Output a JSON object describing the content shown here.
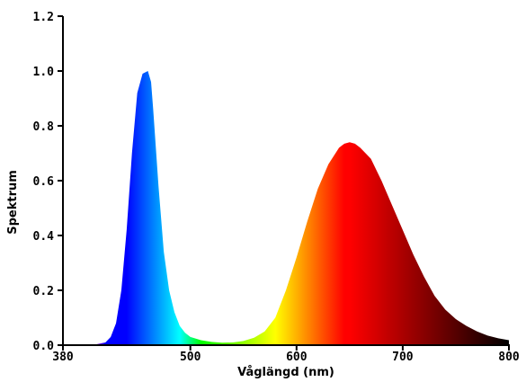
{
  "chart_data": {
    "type": "area",
    "title": "",
    "xlabel": "Våglängd (nm)",
    "ylabel": "Spektrum",
    "xlim": [
      380,
      800
    ],
    "ylim": [
      0,
      1.2
    ],
    "x_ticks": [
      380,
      500,
      600,
      700,
      800
    ],
    "y_ticks": [
      0.0,
      0.2,
      0.4,
      0.6,
      0.8,
      1.0,
      1.2
    ],
    "x_tick_labels": [
      "380",
      "500",
      "600",
      "700",
      "800"
    ],
    "y_tick_labels": [
      "0.0",
      "0.2",
      "0.4",
      "0.6",
      "0.8",
      "1.0",
      "1.2"
    ],
    "grid": false,
    "legend": "none",
    "fill": "wavelength-color gradient",
    "series": [
      {
        "x": [
          380,
          400,
          410,
          420,
          425,
          430,
          435,
          440,
          445,
          450,
          455,
          460,
          463,
          465,
          470,
          475,
          480,
          485,
          490,
          495,
          500,
          510,
          520,
          530,
          540,
          550,
          560,
          570,
          580,
          590,
          600,
          610,
          620,
          630,
          640,
          645,
          650,
          655,
          660,
          670,
          680,
          690,
          700,
          710,
          720,
          730,
          740,
          750,
          760,
          770,
          780,
          790,
          800
        ],
        "y": [
          0.0,
          0.0,
          0.002,
          0.01,
          0.03,
          0.08,
          0.2,
          0.42,
          0.7,
          0.92,
          0.99,
          1.0,
          0.96,
          0.86,
          0.58,
          0.34,
          0.2,
          0.12,
          0.07,
          0.045,
          0.03,
          0.018,
          0.012,
          0.009,
          0.01,
          0.015,
          0.027,
          0.05,
          0.1,
          0.2,
          0.32,
          0.45,
          0.57,
          0.66,
          0.72,
          0.735,
          0.74,
          0.735,
          0.72,
          0.68,
          0.6,
          0.51,
          0.42,
          0.33,
          0.25,
          0.18,
          0.13,
          0.095,
          0.07,
          0.05,
          0.035,
          0.025,
          0.018
        ]
      }
    ]
  }
}
